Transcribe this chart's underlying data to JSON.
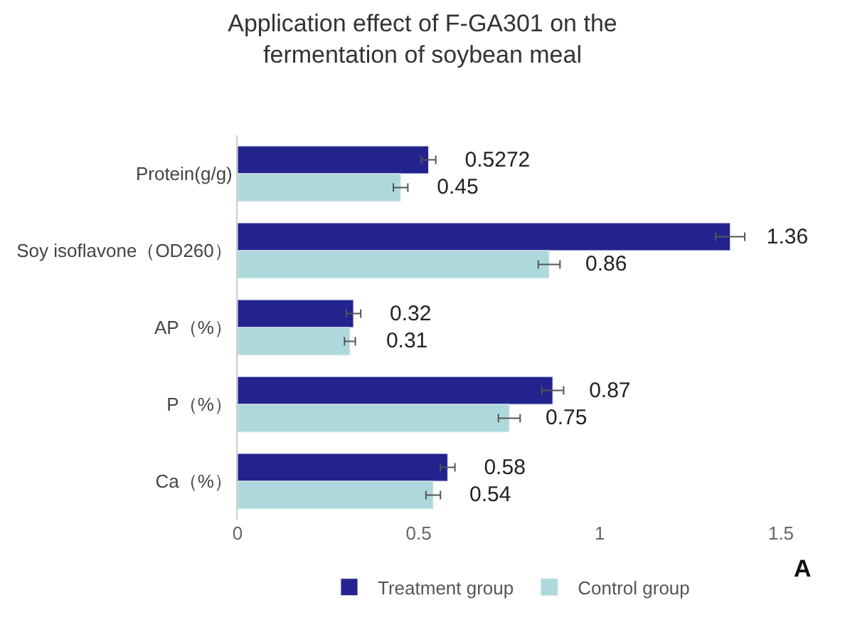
{
  "chart_data": {
    "type": "bar",
    "orientation": "horizontal",
    "title": "Application effect of F-GA301 on the fermentation of soybean meal",
    "categories": [
      "Protein(g/g)",
      "Soy isoflavone（OD260）",
      "AP（%）",
      "P（%）",
      "Ca（%）"
    ],
    "series": [
      {
        "name": "Treatment group",
        "color": "#23238e",
        "values": [
          0.5272,
          1.36,
          0.32,
          0.87,
          0.58
        ],
        "errors": [
          0.02,
          0.04,
          0.02,
          0.03,
          0.02
        ],
        "value_labels": [
          "0.5272",
          "1.36",
          "0.32",
          "0.87",
          "0.58"
        ]
      },
      {
        "name": "Control group",
        "color": "#aed9dc",
        "values": [
          0.45,
          0.86,
          0.31,
          0.75,
          0.54
        ],
        "errors": [
          0.02,
          0.03,
          0.015,
          0.03,
          0.02
        ],
        "value_labels": [
          "0.45",
          "0.86",
          "0.31",
          "0.75",
          "0.54"
        ]
      }
    ],
    "xlim": [
      0,
      1.5
    ],
    "xticks": [
      0,
      0.5,
      1,
      1.5
    ],
    "legend": "bottom",
    "annotations": [
      "A"
    ]
  }
}
